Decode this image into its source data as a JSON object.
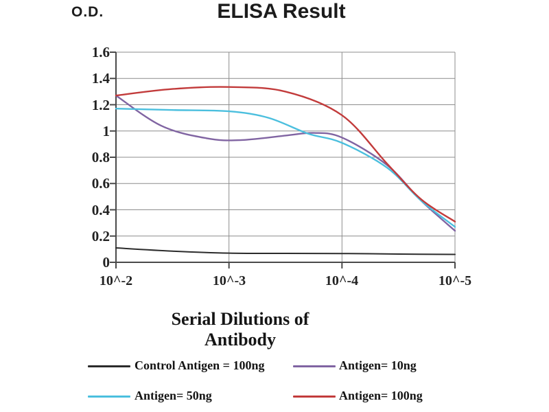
{
  "header": {
    "y_axis_unit": "O.D.",
    "title": "ELISA Result"
  },
  "chart_data": {
    "type": "line",
    "title": "ELISA Result",
    "ylabel": "O.D.",
    "xlabel": "Serial Dilutions of Antibody",
    "x_tick_labels": [
      "10^-2",
      "10^-3",
      "10^-4",
      "10^-5"
    ],
    "y_tick_labels": [
      "1.6",
      "1.4",
      "1.2",
      "1",
      "0.8",
      "0.6",
      "0.4",
      "0.2",
      "0"
    ],
    "ylim": [
      0,
      1.6
    ],
    "x_decades": 3,
    "grid": true,
    "legend_position": "bottom",
    "grid_color": "#8c8c8c",
    "axis_color": "#4a4a4a",
    "series": [
      {
        "name": "Control Antigen = 100ng",
        "color": "#2b2b2b",
        "x": [
          0,
          0.5,
          1,
          1.5,
          2,
          2.5,
          3
        ],
        "y": [
          0.11,
          0.085,
          0.07,
          0.068,
          0.067,
          0.063,
          0.06
        ]
      },
      {
        "name": "Antigen= 10ng",
        "color": "#8064a2",
        "x": [
          0,
          0.4,
          0.8,
          1.1,
          1.5,
          1.75,
          2,
          2.4,
          2.7,
          3
        ],
        "y": [
          1.27,
          1.04,
          0.945,
          0.93,
          0.965,
          0.985,
          0.95,
          0.74,
          0.47,
          0.24
        ]
      },
      {
        "name": "Antigen= 50ng",
        "color": "#4bbfde",
        "x": [
          0,
          0.5,
          1,
          1.35,
          1.7,
          2,
          2.4,
          2.7,
          3
        ],
        "y": [
          1.17,
          1.16,
          1.15,
          1.1,
          0.98,
          0.91,
          0.72,
          0.47,
          0.27
        ]
      },
      {
        "name": "Antigen= 100ng",
        "color": "#c23b3b",
        "x": [
          0,
          0.5,
          1,
          1.5,
          2,
          2.4,
          2.7,
          3
        ],
        "y": [
          1.27,
          1.32,
          1.335,
          1.3,
          1.12,
          0.75,
          0.48,
          0.31
        ]
      }
    ]
  }
}
